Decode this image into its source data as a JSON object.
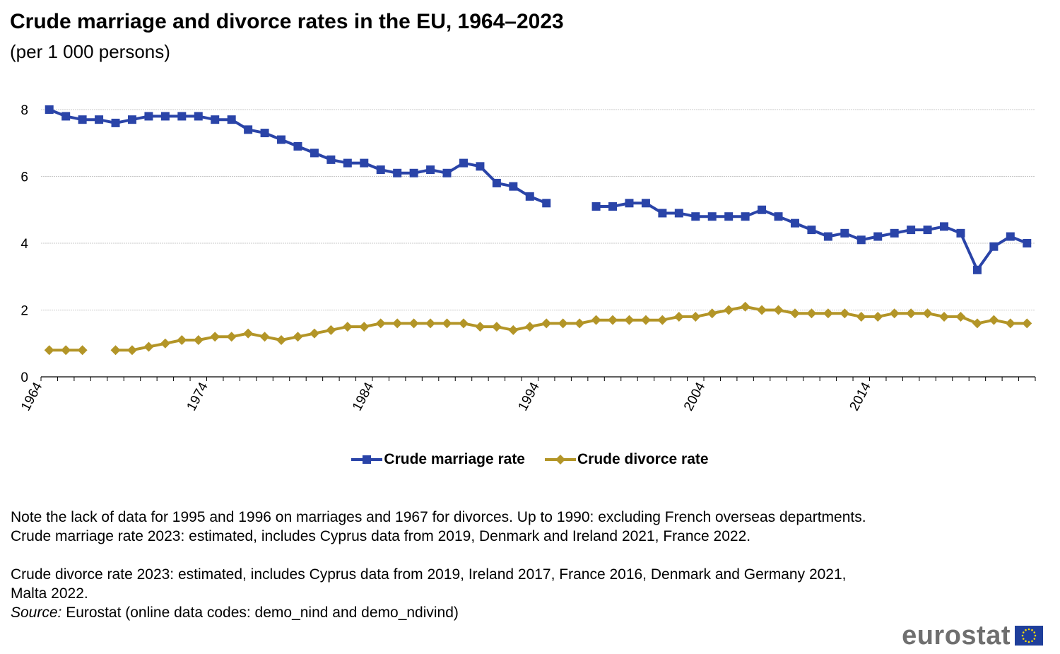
{
  "header": {
    "title": "Crude marriage and divorce rates in the EU, 1964–2023",
    "subtitle": "(per 1 000 persons)"
  },
  "colors": {
    "marriage": "#2A44A8",
    "divorce": "#B39527",
    "grid": "#c8c8c8",
    "axis": "#000000"
  },
  "chart_data": {
    "type": "line",
    "title": "Crude marriage and divorce rates in the EU, 1964–2023",
    "subtitle": "(per 1 000 persons)",
    "xlabel": "",
    "ylabel": "",
    "x": [
      1964,
      1965,
      1966,
      1967,
      1968,
      1969,
      1970,
      1971,
      1972,
      1973,
      1974,
      1975,
      1976,
      1977,
      1978,
      1979,
      1980,
      1981,
      1982,
      1983,
      1984,
      1985,
      1986,
      1987,
      1988,
      1989,
      1990,
      1991,
      1992,
      1993,
      1994,
      1995,
      1996,
      1997,
      1998,
      1999,
      2000,
      2001,
      2002,
      2003,
      2004,
      2005,
      2006,
      2007,
      2008,
      2009,
      2010,
      2011,
      2012,
      2013,
      2014,
      2015,
      2016,
      2017,
      2018,
      2019,
      2020,
      2021,
      2022,
      2023
    ],
    "x_tick_labels": [
      "1964",
      "1974",
      "1984",
      "1994",
      "2004",
      "2014"
    ],
    "ylim": [
      0,
      8
    ],
    "y_ticks": [
      0,
      2,
      4,
      6,
      8
    ],
    "grid": "horizontal",
    "legend_position": "bottom-center",
    "series": [
      {
        "name": "Crude marriage rate",
        "marker": "square",
        "values": [
          8.0,
          7.8,
          7.7,
          7.7,
          7.6,
          7.7,
          7.8,
          7.8,
          7.8,
          7.8,
          7.7,
          7.7,
          7.4,
          7.3,
          7.1,
          6.9,
          6.7,
          6.5,
          6.4,
          6.4,
          6.2,
          6.1,
          6.1,
          6.2,
          6.1,
          6.4,
          6.3,
          5.8,
          5.7,
          5.4,
          5.2,
          null,
          null,
          5.1,
          5.1,
          5.2,
          5.2,
          4.9,
          4.9,
          4.8,
          4.8,
          4.8,
          4.8,
          5.0,
          4.8,
          4.6,
          4.4,
          4.2,
          4.3,
          4.1,
          4.2,
          4.3,
          4.4,
          4.4,
          4.5,
          4.3,
          3.2,
          3.9,
          4.2,
          4.0
        ]
      },
      {
        "name": "Crude divorce rate",
        "marker": "diamond",
        "values": [
          0.8,
          0.8,
          0.8,
          null,
          0.8,
          0.8,
          0.9,
          1.0,
          1.1,
          1.1,
          1.2,
          1.2,
          1.3,
          1.2,
          1.1,
          1.2,
          1.3,
          1.4,
          1.5,
          1.5,
          1.6,
          1.6,
          1.6,
          1.6,
          1.6,
          1.6,
          1.5,
          1.5,
          1.4,
          1.5,
          1.6,
          1.6,
          1.6,
          1.7,
          1.7,
          1.7,
          1.7,
          1.7,
          1.8,
          1.8,
          1.9,
          2.0,
          2.1,
          2.0,
          2.0,
          1.9,
          1.9,
          1.9,
          1.9,
          1.8,
          1.8,
          1.9,
          1.9,
          1.9,
          1.8,
          1.8,
          1.6,
          1.7,
          1.6,
          1.6
        ]
      }
    ]
  },
  "notes": {
    "line1": "Note the lack of data for 1995 and 1996 on marriages and 1967 for divorces. Up to 1990: excluding French overseas departments.",
    "line2": "Crude marriage rate 2023:  estimated, includes Cyprus data from 2019, Denmark and Ireland 2021, France 2022.",
    "line3": "Crude divorce rate 2023: estimated, includes  Cyprus data from 2019, Ireland 2017, France 2016, Denmark and Germany 2021, Malta 2022.",
    "source_label": "Source:",
    "source_text": " Eurostat (online data codes: demo_nind and demo_ndivind)"
  },
  "logo": {
    "text": "eurostat",
    "flag_name": "eu-flag-icon"
  }
}
